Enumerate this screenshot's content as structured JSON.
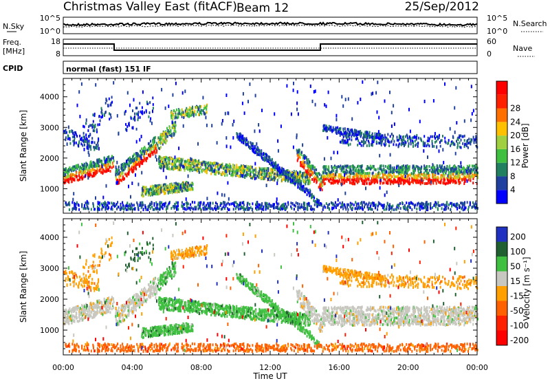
{
  "header": {
    "station": "Christmas Valley East (fitACF)",
    "beam": "Beam 12",
    "date": "25/Sep/2012"
  },
  "noise_panel": {
    "left_label": "N.Sky",
    "right_label": "N.Search",
    "tick_top": "10^5",
    "tick_bottom": "10^0"
  },
  "freq_panel": {
    "left_label_1": "Freq.",
    "left_label_2": "[MHz]",
    "right_label": "Nave",
    "left_tick_top": "18",
    "left_tick_bottom": "8",
    "right_tick_top": "60",
    "right_tick_bottom": "0"
  },
  "cpid": {
    "label": "CPID",
    "value": "normal (fast) 151 IF"
  },
  "chart_data": [
    {
      "type": "heatmap",
      "panel": "power",
      "ylabel": "Slant Range [km]",
      "yticks": [
        "1000",
        "2000",
        "3000",
        "4000"
      ],
      "ylim": [
        200,
        4600
      ],
      "colorbar_label": "Power [dB]",
      "colorbar_ticks": [
        "4",
        "8",
        "12",
        "16",
        "20",
        "24",
        "28"
      ],
      "colorbar_range": [
        0,
        32
      ],
      "colors": [
        "#0000ff",
        "#2040a0",
        "#208060",
        "#40c040",
        "#a0d040",
        "#ffc000",
        "#ff7000",
        "#ff2000",
        "#ff0000"
      ]
    },
    {
      "type": "heatmap",
      "panel": "velocity",
      "ylabel": "Slant Range [km]",
      "yticks": [
        "1000",
        "2000",
        "3000",
        "4000"
      ],
      "ylim": [
        200,
        4600
      ],
      "colorbar_label": "Velocity [m s⁻¹]",
      "colorbar_ticks": [
        "200",
        "100",
        "50",
        "15",
        "-15",
        "-50",
        "-100",
        "-200"
      ],
      "colors": [
        "#2030c0",
        "#206030",
        "#40c040",
        "#c8c8c0",
        "#ffa000",
        "#ff6000",
        "#ff2000",
        "#ff0000"
      ]
    }
  ],
  "time_axis": {
    "xlabel": "Time UT",
    "ticks": [
      "00:00",
      "04:00",
      "08:00",
      "12:00",
      "16:00",
      "20:00",
      "00:00"
    ]
  }
}
